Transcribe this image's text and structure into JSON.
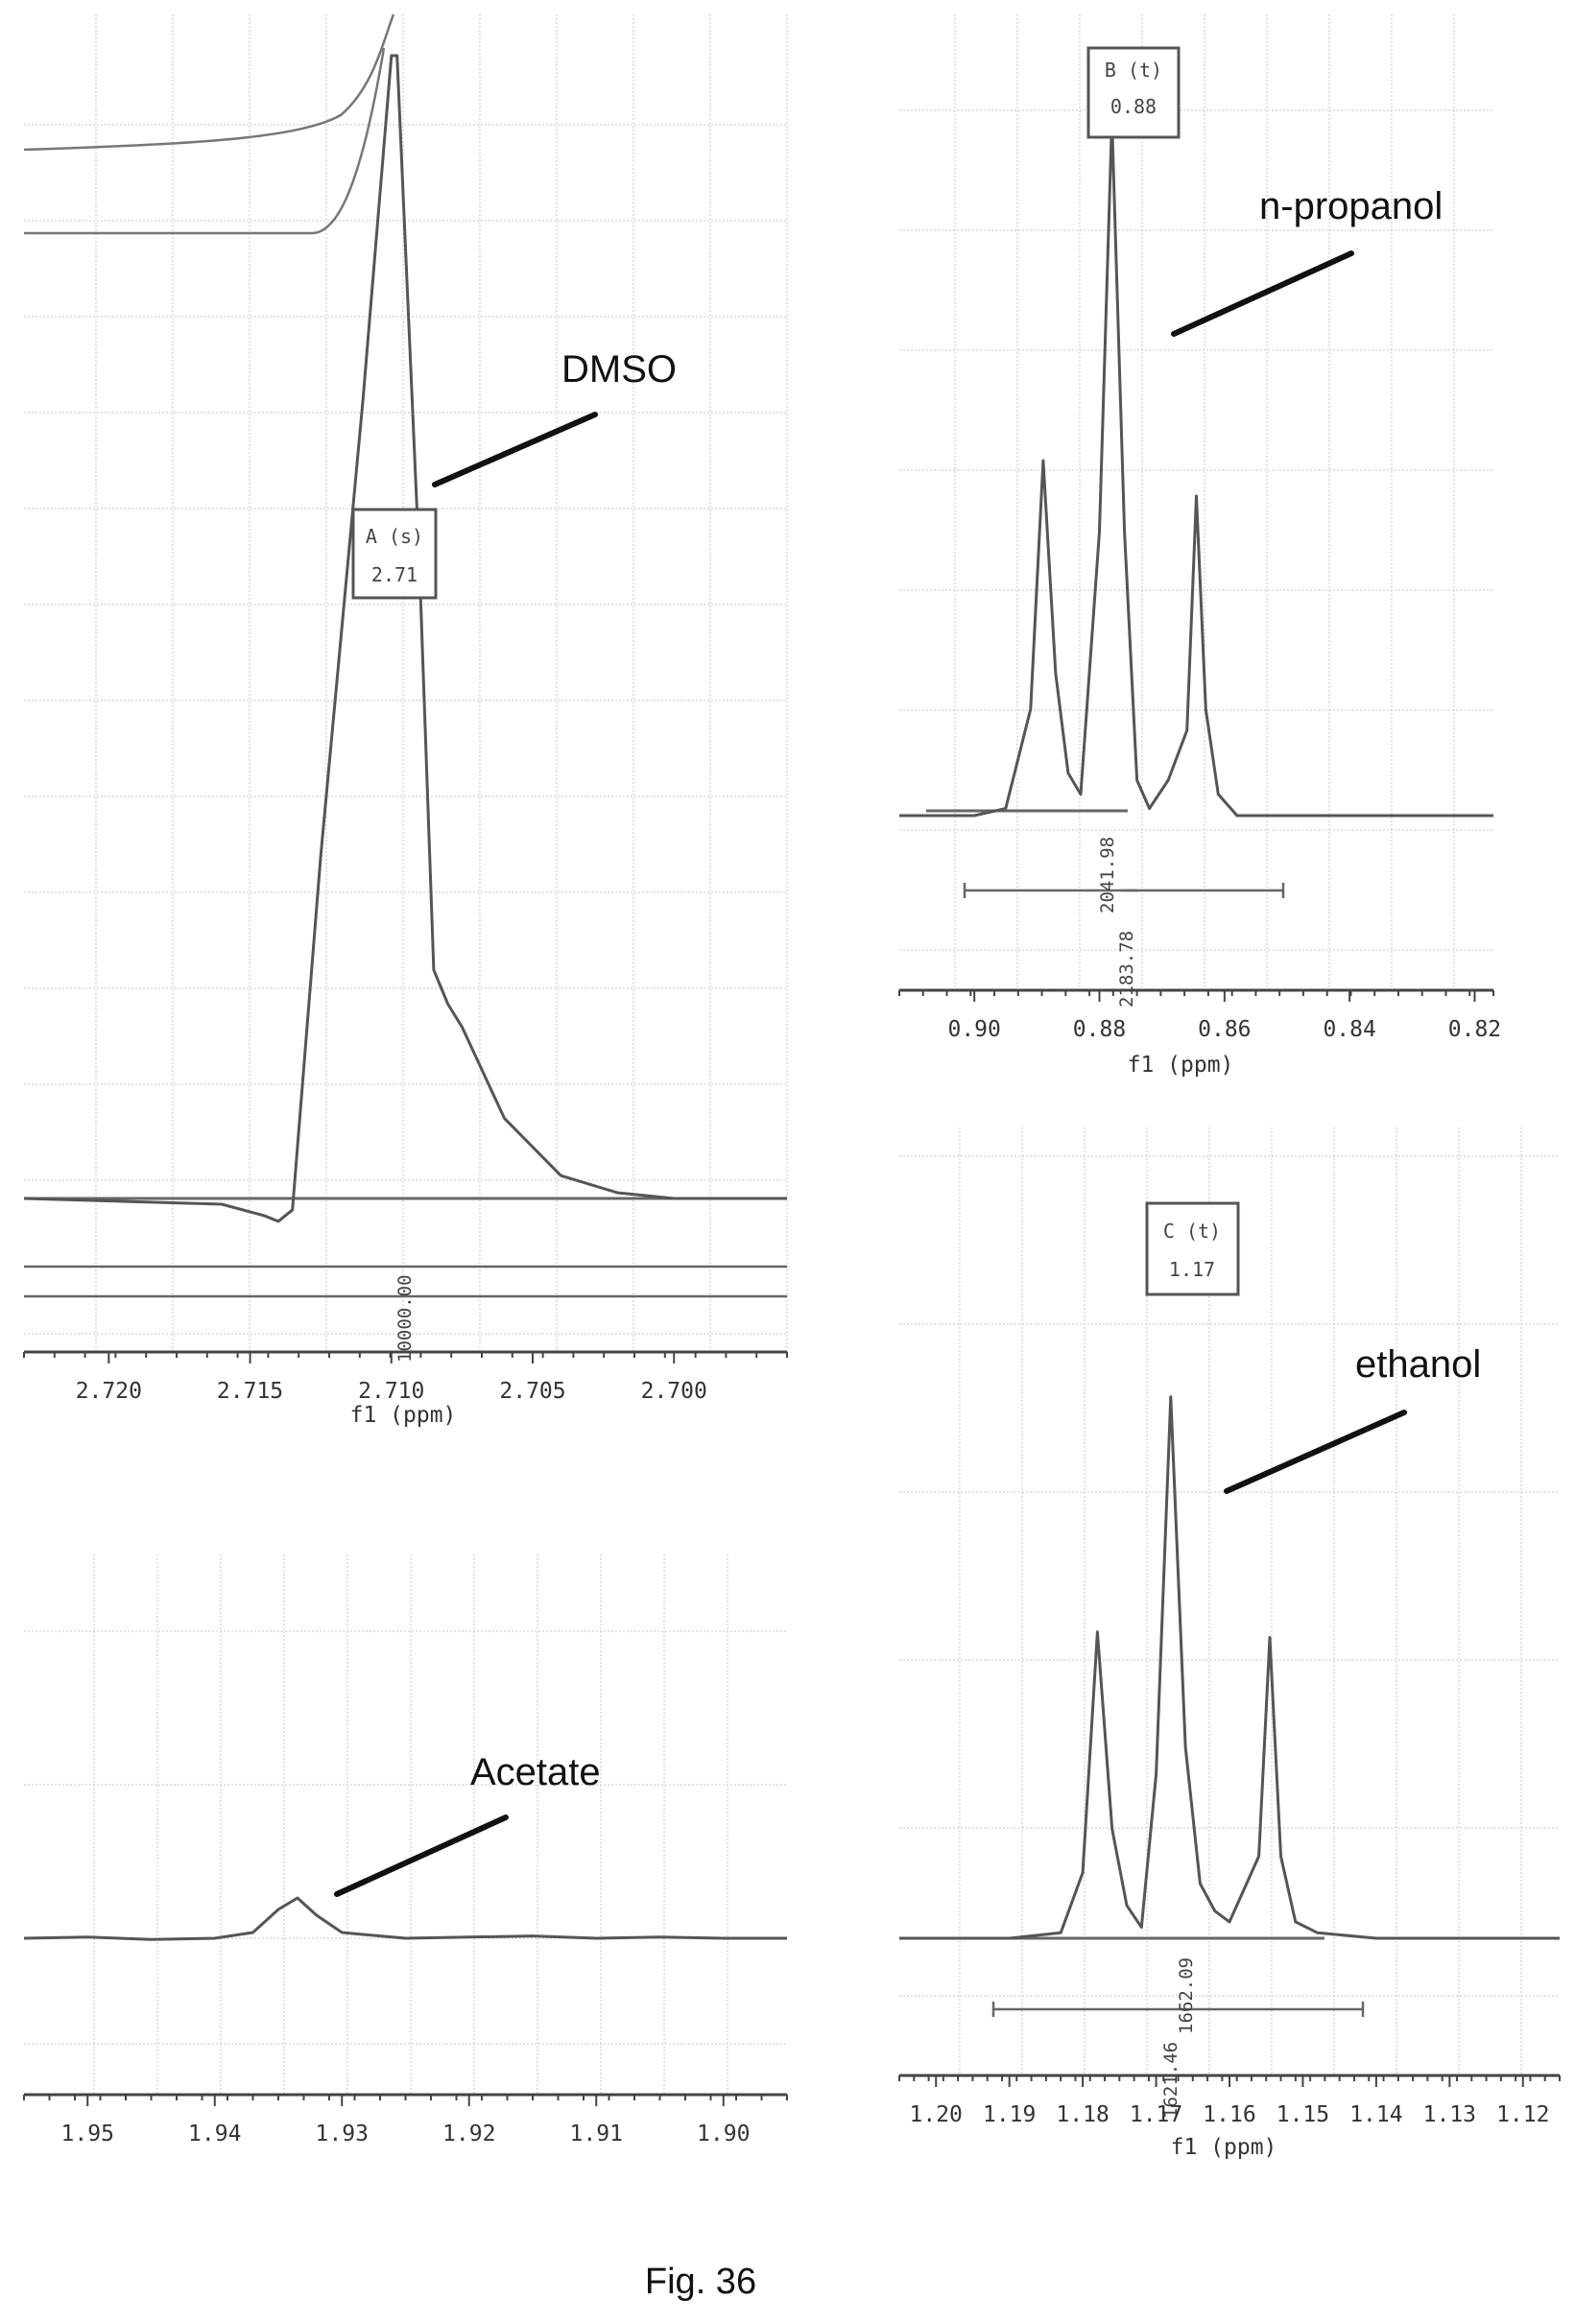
{
  "figure": {
    "caption": "Fig. 36"
  },
  "chart_data": [
    {
      "id": "dmso",
      "type": "line",
      "xlabel": "f1 (ppm)",
      "x_ticks": [
        "2.720",
        "2.715",
        "2.710",
        "2.705",
        "2.700"
      ],
      "x_range": [
        2.723,
        2.696
      ],
      "x_reversed": true,
      "annotation": "DMSO",
      "peak_label": {
        "name": "A (s)",
        "shift": "2.71"
      },
      "integral_values": [
        "10000.00"
      ],
      "series": [
        {
          "x": [
            2.723,
            2.716,
            2.7145,
            2.714,
            2.7135,
            2.7125,
            2.711,
            2.71,
            2.7098,
            2.709,
            2.7085,
            2.708,
            2.7075,
            2.706,
            2.704,
            2.702,
            2.7,
            2.696
          ],
          "y": [
            0.0,
            -0.005,
            -0.015,
            -0.02,
            -0.01,
            0.3,
            0.7,
            1.0,
            1.0,
            0.55,
            0.2,
            0.17,
            0.15,
            0.07,
            0.02,
            0.005,
            0.0,
            0.0
          ]
        }
      ]
    },
    {
      "id": "n-propanol",
      "type": "line",
      "xlabel": "f1 (ppm)",
      "x_ticks": [
        "0.90",
        "0.88",
        "0.86",
        "0.84",
        "0.82"
      ],
      "x_range": [
        0.912,
        0.817
      ],
      "x_reversed": true,
      "annotation": "n-propanol",
      "peak_label": {
        "name": "B (t)",
        "shift": "0.88"
      },
      "integral_values": [
        "2041.98",
        "2183.78"
      ],
      "series": [
        {
          "x": [
            0.912,
            0.9,
            0.895,
            0.891,
            0.889,
            0.887,
            0.885,
            0.883,
            0.88,
            0.878,
            0.876,
            0.874,
            0.872,
            0.869,
            0.866,
            0.8645,
            0.863,
            0.861,
            0.858,
            0.85,
            0.84,
            0.83,
            0.817
          ],
          "y": [
            0.0,
            0.0,
            0.01,
            0.15,
            0.5,
            0.2,
            0.06,
            0.03,
            0.4,
            0.98,
            0.4,
            0.05,
            0.01,
            0.05,
            0.12,
            0.45,
            0.15,
            0.03,
            0.0,
            0.0,
            0.0,
            0.0,
            0.0
          ]
        }
      ]
    },
    {
      "id": "acetate",
      "type": "line",
      "xlabel": "",
      "x_ticks": [
        "1.95",
        "1.94",
        "1.93",
        "1.92",
        "1.91",
        "1.90"
      ],
      "x_range": [
        1.955,
        1.895
      ],
      "x_reversed": true,
      "annotation": "Acetate",
      "series": [
        {
          "x": [
            1.955,
            1.95,
            1.945,
            1.94,
            1.937,
            1.935,
            1.9335,
            1.932,
            1.93,
            1.925,
            1.92,
            1.915,
            1.91,
            1.905,
            1.9,
            1.895
          ],
          "y": [
            0.0,
            0.01,
            -0.01,
            0.0,
            0.05,
            0.25,
            0.35,
            0.2,
            0.05,
            0.0,
            0.01,
            0.02,
            0.0,
            0.01,
            0.0,
            0.0
          ]
        }
      ]
    },
    {
      "id": "ethanol",
      "type": "line",
      "xlabel": "f1 (ppm)",
      "x_ticks": [
        "1.20",
        "1.19",
        "1.18",
        "1.17",
        "1.16",
        "1.15",
        "1.14",
        "1.13",
        "1.12"
      ],
      "x_range": [
        1.205,
        1.115
      ],
      "x_reversed": true,
      "annotation": "ethanol",
      "peak_label": {
        "name": "C (t)",
        "shift": "1.17"
      },
      "integral_values": [
        "1621.46",
        "1662.09"
      ],
      "series": [
        {
          "x": [
            1.205,
            1.19,
            1.183,
            1.18,
            1.178,
            1.176,
            1.174,
            1.172,
            1.17,
            1.168,
            1.166,
            1.164,
            1.162,
            1.16,
            1.156,
            1.1545,
            1.153,
            1.151,
            1.148,
            1.14,
            1.13,
            1.115
          ],
          "y": [
            0.0,
            0.0,
            0.01,
            0.12,
            0.56,
            0.2,
            0.06,
            0.02,
            0.3,
            0.99,
            0.35,
            0.1,
            0.05,
            0.03,
            0.15,
            0.55,
            0.15,
            0.03,
            0.01,
            0.0,
            0.0,
            0.0
          ]
        }
      ]
    }
  ]
}
